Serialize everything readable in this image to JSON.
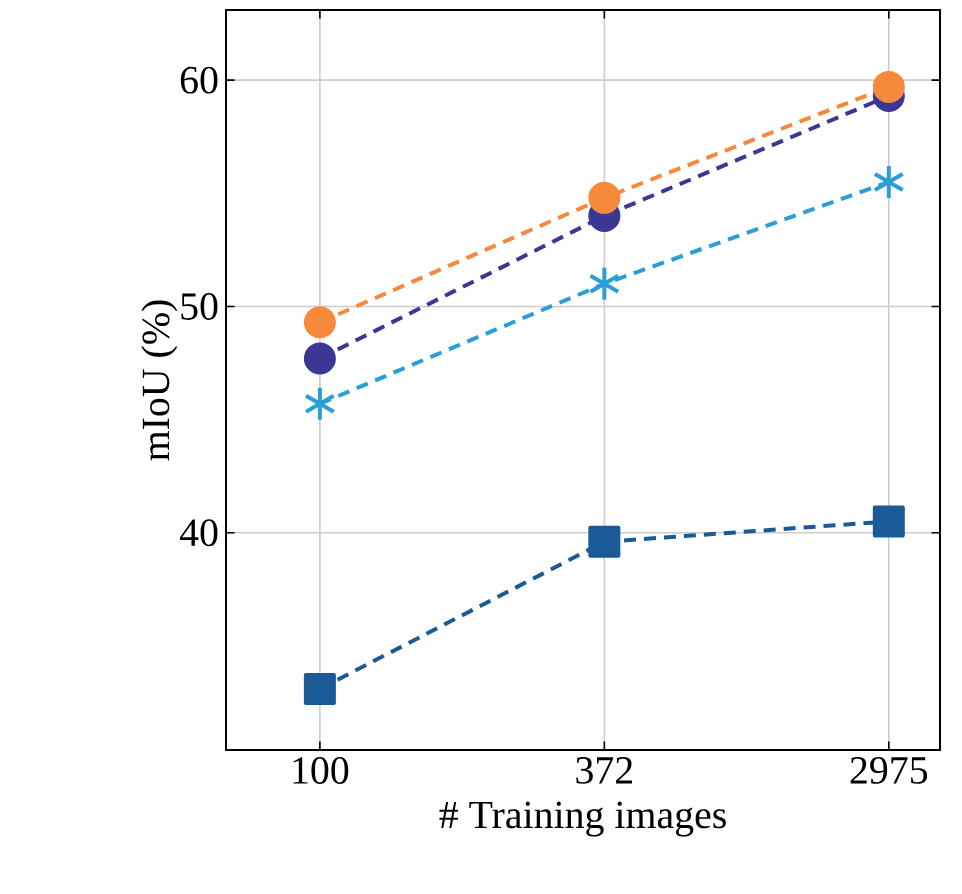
{
  "chart_data": {
    "type": "line",
    "xlabel": "# Training images",
    "ylabel": "mIoU (%)",
    "categories": [
      "100",
      "372",
      "2975"
    ],
    "ylim": [
      30.4,
      63.1
    ],
    "yticks": [
      40,
      50,
      60
    ],
    "grid": true,
    "line_style": "dashed",
    "series": [
      {
        "color": "#1a5a96",
        "marker": "square",
        "values": [
          33.1,
          39.6,
          40.5
        ]
      },
      {
        "color": "#2b9ed8",
        "marker": "cross",
        "values": [
          45.7,
          51.0,
          55.5
        ]
      },
      {
        "color": "#3a3894",
        "marker": "circle",
        "values": [
          47.7,
          54.0,
          59.3
        ]
      },
      {
        "color": "#f7893c",
        "marker": "circle",
        "values": [
          49.3,
          54.8,
          59.7
        ]
      }
    ]
  }
}
